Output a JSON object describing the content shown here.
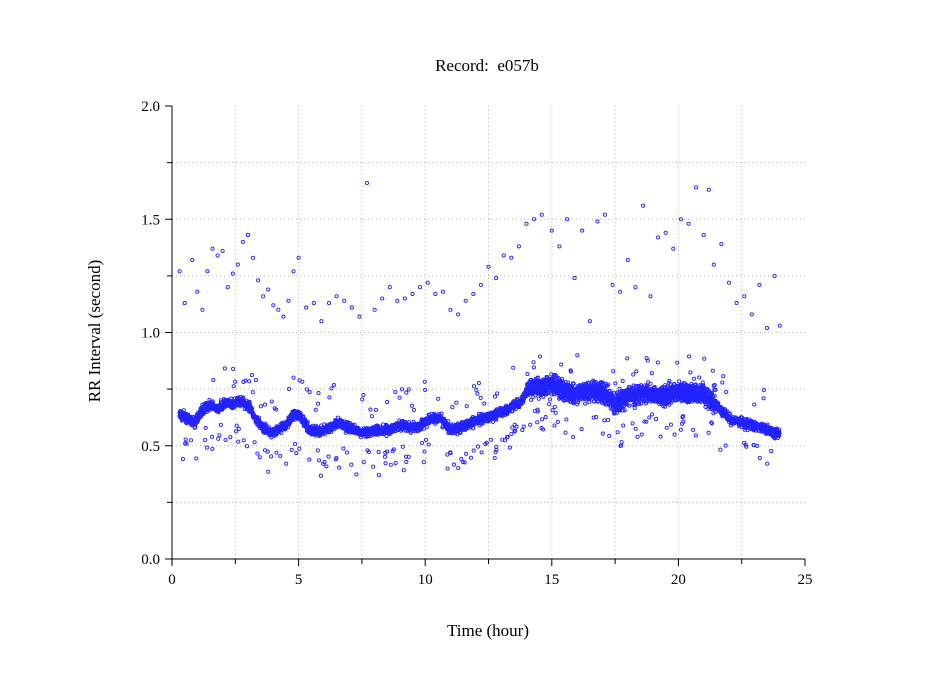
{
  "chart_data": {
    "type": "scatter",
    "title": "Record:  e057b",
    "xlabel": "Time (hour)",
    "ylabel": "RR Interval (second)",
    "xlim": [
      0,
      25
    ],
    "ylim": [
      0.0,
      2.0
    ],
    "x_ticks": [
      "0",
      "5",
      "10",
      "15",
      "20",
      "25"
    ],
    "y_ticks": [
      "0.0",
      "0.5",
      "1.0",
      "1.5",
      "2.0"
    ],
    "grid": true,
    "legend": "none",
    "marker": "open-circle",
    "colors": {
      "points": "#2323ff",
      "axes": "#000000",
      "grid": "#b4b4b4"
    },
    "series": [
      {
        "baseline": [
          [
            0.3,
            0.64
          ],
          [
            0.6,
            0.62
          ],
          [
            0.9,
            0.6
          ],
          [
            1.2,
            0.66
          ],
          [
            1.5,
            0.68
          ],
          [
            1.8,
            0.66
          ],
          [
            2.1,
            0.69
          ],
          [
            2.4,
            0.68
          ],
          [
            2.7,
            0.7
          ],
          [
            3.0,
            0.68
          ],
          [
            3.3,
            0.62
          ],
          [
            3.6,
            0.58
          ],
          [
            3.9,
            0.56
          ],
          [
            4.2,
            0.57
          ],
          [
            4.5,
            0.59
          ],
          [
            4.8,
            0.64
          ],
          [
            5.1,
            0.63
          ],
          [
            5.4,
            0.57
          ],
          [
            5.8,
            0.56
          ],
          [
            6.2,
            0.58
          ],
          [
            6.6,
            0.6
          ],
          [
            7.0,
            0.58
          ],
          [
            7.4,
            0.56
          ],
          [
            7.8,
            0.56
          ],
          [
            8.2,
            0.57
          ],
          [
            8.6,
            0.57
          ],
          [
            9.0,
            0.59
          ],
          [
            9.4,
            0.58
          ],
          [
            9.8,
            0.59
          ],
          [
            10.2,
            0.62
          ],
          [
            10.6,
            0.62
          ],
          [
            11.0,
            0.57
          ],
          [
            11.4,
            0.58
          ],
          [
            11.8,
            0.6
          ],
          [
            12.2,
            0.62
          ],
          [
            12.6,
            0.63
          ],
          [
            13.0,
            0.65
          ],
          [
            13.4,
            0.67
          ],
          [
            13.8,
            0.7
          ],
          [
            14.1,
            0.75
          ],
          [
            14.5,
            0.76
          ],
          [
            15.0,
            0.77
          ],
          [
            15.5,
            0.74
          ],
          [
            16.0,
            0.73
          ],
          [
            16.5,
            0.74
          ],
          [
            17.0,
            0.74
          ],
          [
            17.5,
            0.68
          ],
          [
            18.0,
            0.72
          ],
          [
            18.5,
            0.73
          ],
          [
            19.0,
            0.73
          ],
          [
            19.5,
            0.72
          ],
          [
            20.0,
            0.74
          ],
          [
            20.5,
            0.73
          ],
          [
            21.0,
            0.73
          ],
          [
            21.5,
            0.68
          ],
          [
            22.0,
            0.62
          ],
          [
            22.5,
            0.6
          ],
          [
            23.0,
            0.59
          ],
          [
            23.5,
            0.57
          ],
          [
            24.0,
            0.55
          ]
        ],
        "outliers": [
          [
            0.3,
            1.27
          ],
          [
            0.5,
            1.13
          ],
          [
            0.8,
            1.32
          ],
          [
            1.0,
            1.18
          ],
          [
            1.2,
            1.1
          ],
          [
            1.4,
            1.27
          ],
          [
            1.6,
            1.37
          ],
          [
            1.8,
            1.34
          ],
          [
            2.0,
            1.36
          ],
          [
            2.2,
            1.2
          ],
          [
            2.4,
            1.26
          ],
          [
            2.6,
            1.3
          ],
          [
            2.8,
            1.4
          ],
          [
            3.0,
            1.43
          ],
          [
            3.2,
            1.33
          ],
          [
            3.4,
            1.23
          ],
          [
            3.6,
            1.16
          ],
          [
            3.8,
            1.19
          ],
          [
            4.0,
            1.12
          ],
          [
            4.2,
            1.1
          ],
          [
            4.4,
            1.07
          ],
          [
            4.6,
            1.14
          ],
          [
            4.8,
            1.27
          ],
          [
            5.0,
            1.33
          ],
          [
            5.3,
            1.11
          ],
          [
            5.6,
            1.13
          ],
          [
            5.9,
            1.05
          ],
          [
            6.2,
            1.13
          ],
          [
            6.5,
            1.16
          ],
          [
            6.8,
            1.14
          ],
          [
            7.1,
            1.11
          ],
          [
            7.4,
            1.07
          ],
          [
            7.7,
            1.66
          ],
          [
            8.0,
            1.1
          ],
          [
            8.3,
            1.15
          ],
          [
            8.6,
            1.2
          ],
          [
            8.9,
            1.14
          ],
          [
            9.2,
            1.15
          ],
          [
            9.5,
            1.17
          ],
          [
            9.8,
            1.2
          ],
          [
            10.1,
            1.22
          ],
          [
            10.4,
            1.17
          ],
          [
            10.7,
            1.18
          ],
          [
            11.0,
            1.1
          ],
          [
            11.3,
            1.08
          ],
          [
            11.6,
            1.14
          ],
          [
            11.9,
            1.17
          ],
          [
            12.2,
            1.21
          ],
          [
            12.5,
            1.29
          ],
          [
            12.8,
            1.24
          ],
          [
            13.1,
            1.34
          ],
          [
            13.4,
            1.33
          ],
          [
            13.7,
            1.38
          ],
          [
            14.0,
            1.48
          ],
          [
            14.3,
            1.5
          ],
          [
            14.6,
            1.52
          ],
          [
            15.0,
            1.45
          ],
          [
            15.3,
            1.38
          ],
          [
            15.6,
            1.5
          ],
          [
            15.9,
            1.24
          ],
          [
            16.2,
            1.45
          ],
          [
            16.5,
            1.05
          ],
          [
            16.8,
            1.49
          ],
          [
            17.1,
            1.52
          ],
          [
            17.4,
            1.21
          ],
          [
            17.7,
            1.18
          ],
          [
            18.0,
            1.32
          ],
          [
            18.3,
            1.2
          ],
          [
            18.6,
            1.56
          ],
          [
            18.9,
            1.16
          ],
          [
            19.2,
            1.42
          ],
          [
            19.5,
            1.44
          ],
          [
            19.8,
            1.37
          ],
          [
            20.1,
            1.5
          ],
          [
            20.4,
            1.48
          ],
          [
            20.7,
            1.64
          ],
          [
            21.0,
            1.43
          ],
          [
            21.2,
            1.63
          ],
          [
            21.4,
            1.3
          ],
          [
            21.7,
            1.39
          ],
          [
            22.0,
            1.22
          ],
          [
            22.3,
            1.13
          ],
          [
            22.6,
            1.16
          ],
          [
            22.9,
            1.08
          ],
          [
            23.2,
            1.21
          ],
          [
            23.5,
            1.02
          ],
          [
            23.8,
            1.25
          ],
          [
            24.0,
            1.03
          ]
        ]
      }
    ]
  }
}
